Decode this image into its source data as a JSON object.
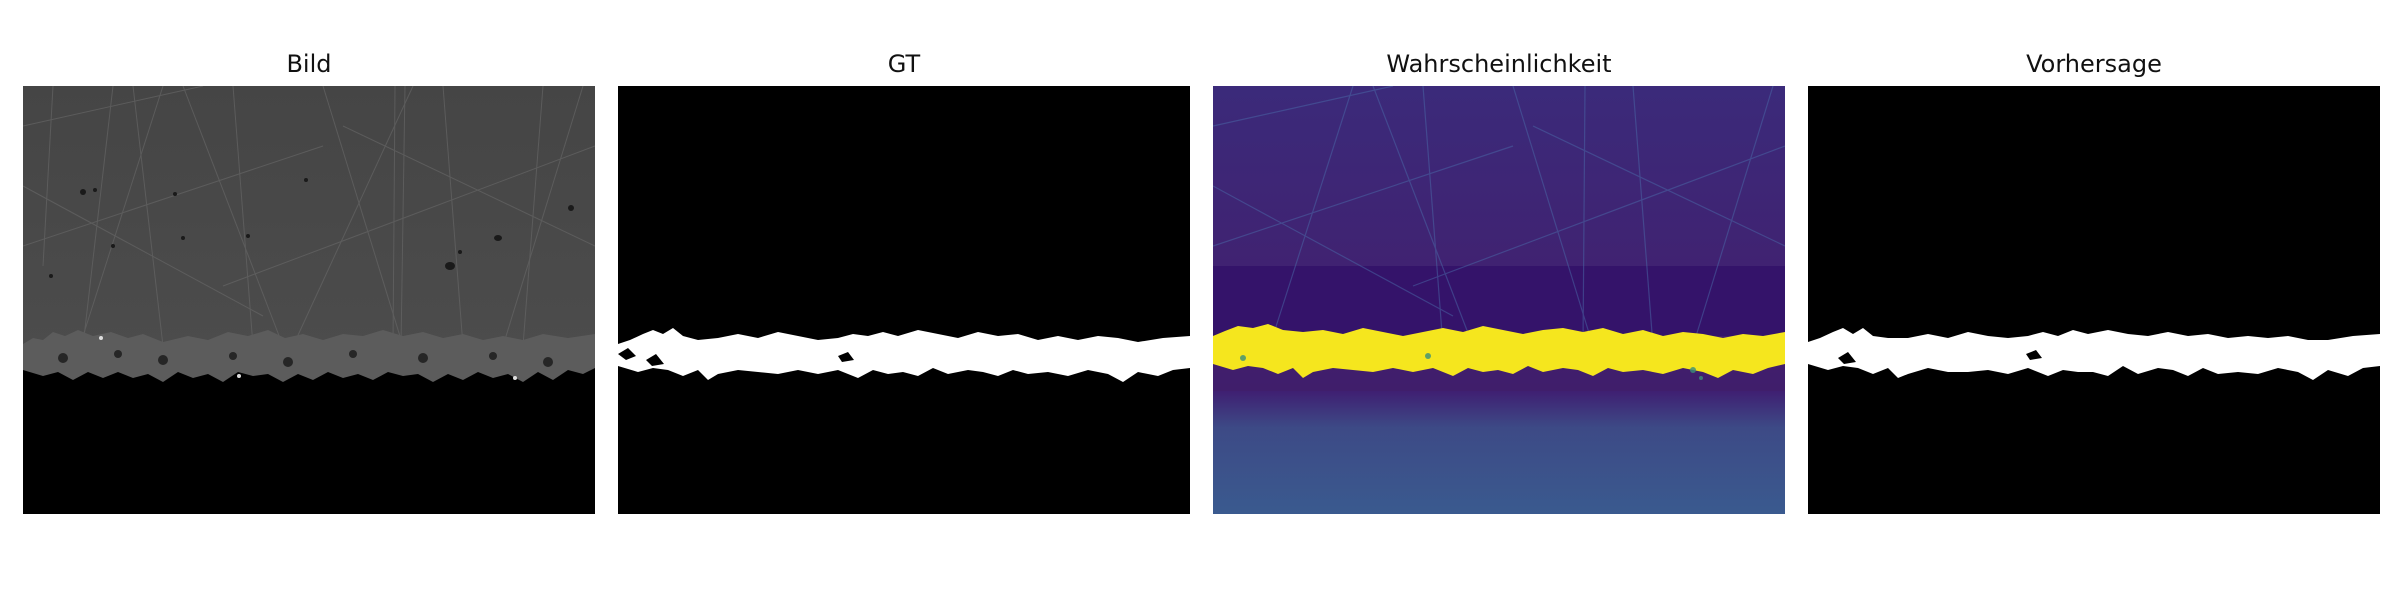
{
  "panels": [
    {
      "title": "Bild"
    },
    {
      "title": "GT"
    },
    {
      "title": "Wahrscheinlichkeit"
    },
    {
      "title": "Vorhersage"
    }
  ],
  "colors": {
    "background": "#ffffff",
    "micrograph_gray": "#4a4a4a",
    "mask_foreground": "#ffffff",
    "mask_background": "#000000",
    "probability_low": "#3b1f6e",
    "probability_mid": "#3a5a8f",
    "probability_high": "#f5e61e"
  }
}
